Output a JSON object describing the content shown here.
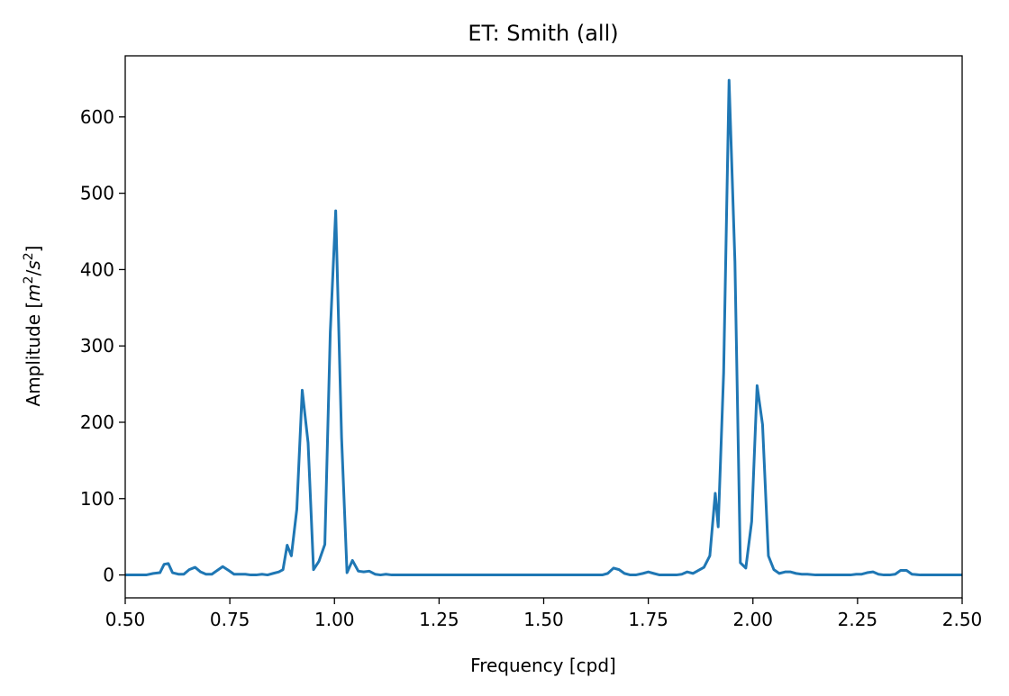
{
  "chart_data": {
    "type": "line",
    "title": "ET: Smith (all)",
    "xlabel": "Frequency [cpd]",
    "ylabel": "Amplitude [m²/s²]",
    "xlim": [
      0.5,
      2.5
    ],
    "ylim": [
      -30,
      680
    ],
    "xticks": [
      0.5,
      0.75,
      1.0,
      1.25,
      1.5,
      1.75,
      2.0,
      2.25,
      2.5
    ],
    "xtick_labels": [
      "0.50",
      "0.75",
      "1.00",
      "1.25",
      "1.50",
      "1.75",
      "2.00",
      "2.25",
      "2.50"
    ],
    "yticks": [
      0,
      100,
      200,
      300,
      400,
      500,
      600
    ],
    "ytick_labels": [
      "0",
      "100",
      "200",
      "300",
      "400",
      "500",
      "600"
    ],
    "grid": false,
    "series": [
      {
        "color": "#1f77b4",
        "x": [
          0.5,
          0.53,
          0.55,
          0.567,
          0.583,
          0.593,
          0.603,
          0.613,
          0.627,
          0.64,
          0.653,
          0.667,
          0.68,
          0.693,
          0.707,
          0.72,
          0.733,
          0.747,
          0.76,
          0.773,
          0.787,
          0.8,
          0.813,
          0.827,
          0.84,
          0.853,
          0.867,
          0.877,
          0.887,
          0.897,
          0.91,
          0.923,
          0.937,
          0.95,
          0.963,
          0.977,
          0.99,
          1.003,
          1.017,
          1.03,
          1.043,
          1.057,
          1.07,
          1.083,
          1.097,
          1.11,
          1.123,
          1.137,
          1.15,
          1.2,
          1.3,
          1.4,
          1.5,
          1.55,
          1.6,
          1.627,
          1.64,
          1.653,
          1.667,
          1.68,
          1.693,
          1.707,
          1.72,
          1.737,
          1.75,
          1.763,
          1.777,
          1.79,
          1.803,
          1.817,
          1.83,
          1.843,
          1.857,
          1.87,
          1.883,
          1.897,
          1.91,
          1.917,
          1.93,
          1.943,
          1.957,
          1.97,
          1.983,
          1.997,
          2.01,
          2.023,
          2.037,
          2.05,
          2.063,
          2.077,
          2.09,
          2.103,
          2.117,
          2.13,
          2.15,
          2.18,
          2.207,
          2.22,
          2.233,
          2.247,
          2.26,
          2.273,
          2.287,
          2.3,
          2.313,
          2.327,
          2.34,
          2.353,
          2.367,
          2.38,
          2.4,
          2.45,
          2.5
        ],
        "y": [
          0,
          0,
          0,
          2,
          3,
          14,
          15,
          3,
          1,
          1,
          7,
          10,
          4,
          1,
          1,
          6,
          11,
          6,
          1,
          1,
          1,
          0,
          0,
          1,
          0,
          2,
          4,
          7,
          39,
          25,
          86,
          242,
          173,
          7,
          18,
          40,
          318,
          477,
          180,
          3,
          19,
          5,
          4,
          5,
          1,
          0,
          1,
          0,
          0,
          0,
          0,
          0,
          0,
          0,
          0,
          0,
          0,
          2,
          9,
          7,
          2,
          0,
          0,
          2,
          4,
          2,
          0,
          0,
          0,
          0,
          1,
          4,
          2,
          6,
          10,
          25,
          107,
          63,
          265,
          648,
          410,
          16,
          9,
          70,
          248,
          197,
          25,
          7,
          2,
          4,
          4,
          2,
          1,
          1,
          0,
          0,
          0,
          0,
          0,
          1,
          1,
          3,
          4,
          1,
          0,
          0,
          1,
          6,
          6,
          1,
          0,
          0,
          0
        ]
      }
    ]
  }
}
